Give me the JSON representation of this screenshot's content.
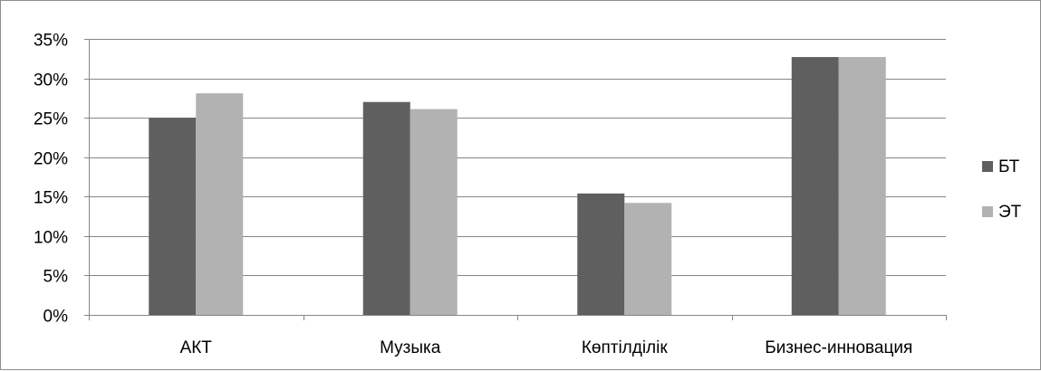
{
  "chart_data": {
    "type": "bar",
    "categories": [
      "АКТ",
      "Музыка",
      "Көптілділік",
      "Бизнес-инновация"
    ],
    "series": [
      {
        "name": "БТ",
        "color": "#5f5f5f",
        "values": [
          25.0,
          27.0,
          15.4,
          32.7
        ]
      },
      {
        "name": "ЭТ",
        "color": "#b2b2b2",
        "values": [
          28.1,
          26.1,
          14.2,
          32.7
        ]
      }
    ],
    "y_ticks": [
      "0%",
      "5%",
      "10%",
      "15%",
      "20%",
      "25%",
      "30%",
      "35%"
    ],
    "ylim": [
      0,
      35
    ],
    "y_unit": "%",
    "grid": true,
    "legend_position": "right",
    "title": "",
    "xlabel": "",
    "ylabel": ""
  }
}
